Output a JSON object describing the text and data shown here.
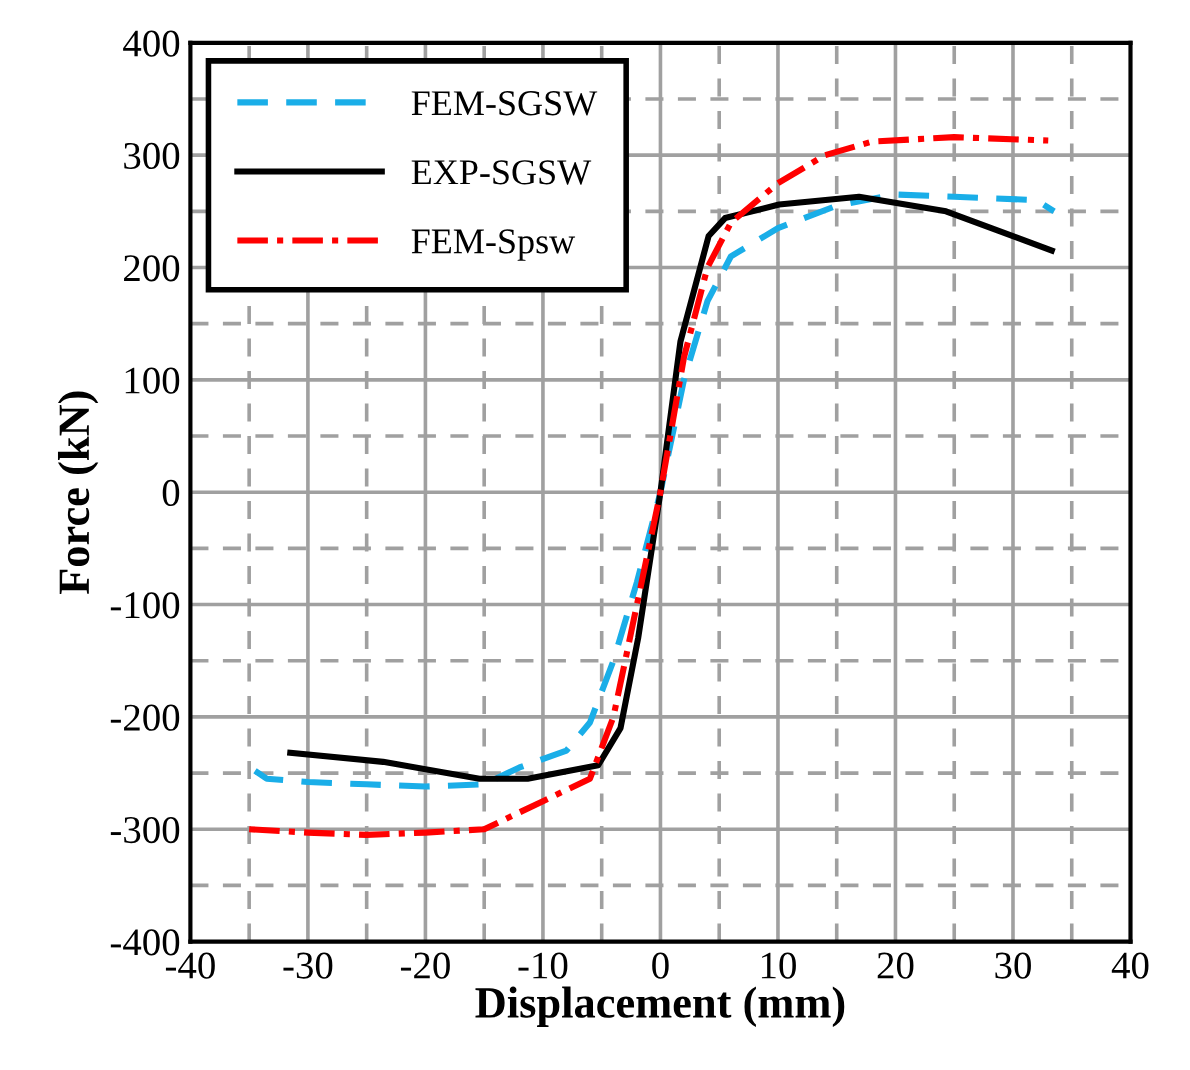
{
  "chart_data": {
    "type": "line",
    "xlabel": "Displacement (mm)",
    "ylabel": "Force (kN)",
    "xlim": [
      -40,
      40
    ],
    "ylim": [
      -400,
      400
    ],
    "xticks": [
      -40,
      {
        "value": -35,
        "label": null
      },
      -30,
      {
        "value": -25,
        "label": null
      },
      -20,
      {
        "value": -15,
        "label": null
      },
      -10,
      {
        "value": -5,
        "label": null
      },
      0,
      {
        "value": 5,
        "label": null
      },
      10,
      {
        "value": 15,
        "label": null
      },
      20,
      {
        "value": 25,
        "label": null
      },
      30,
      {
        "value": 35,
        "label": null
      },
      40
    ],
    "yticks": [
      -400,
      {
        "value": -350,
        "label": null
      },
      -300,
      {
        "value": -250,
        "label": null
      },
      -200,
      {
        "value": -150,
        "label": null
      },
      -100,
      {
        "value": -50,
        "label": null
      },
      0,
      {
        "value": 50,
        "label": null
      },
      100,
      {
        "value": 150,
        "label": null
      },
      200,
      {
        "value": 250,
        "label": null
      },
      300,
      {
        "value": 350,
        "label": null
      },
      400
    ],
    "grid": true,
    "legend": "top left",
    "marker": "none",
    "series": [
      {
        "name": "FEM-SGSW",
        "color": "#1aaee8",
        "line_style": "dashed",
        "x": [
          -34.5,
          -33.5,
          -30,
          -25,
          -20,
          -15,
          -12,
          -8,
          -6,
          -4,
          -2,
          0,
          2,
          4,
          6,
          10,
          15,
          20,
          25,
          32,
          33.5
        ],
        "values": [
          -248,
          -255,
          -258,
          -260,
          -262,
          -260,
          -245,
          -230,
          -205,
          -150,
          -80,
          0,
          100,
          170,
          210,
          235,
          255,
          265,
          263,
          260,
          250
        ]
      },
      {
        "name": "EXP-SGSW",
        "color": "#000000",
        "line_style": "solid",
        "x": [
          -31.5,
          -23.6,
          -15.4,
          -11.3,
          -5.3,
          -3.4,
          -1.9,
          0,
          1.7,
          4.1,
          5.5,
          10.1,
          16.9,
          24.3,
          33.3
        ],
        "values": [
          -232,
          -240,
          -255,
          -255,
          -243,
          -210,
          -130,
          0,
          134,
          228,
          244,
          256,
          263,
          250,
          215
        ]
      },
      {
        "name": "FEM-Spsw",
        "color": "#ff0000",
        "line_style": "dashdot",
        "x": [
          -35,
          -30,
          -25,
          -20,
          -15,
          -10,
          -6,
          -4,
          -2,
          0,
          2,
          4,
          6,
          10,
          14,
          18,
          25,
          33
        ],
        "values": [
          -300,
          -303,
          -305,
          -303,
          -300,
          -275,
          -255,
          -200,
          -100,
          0,
          120,
          200,
          240,
          275,
          300,
          312,
          316,
          313
        ]
      }
    ]
  }
}
